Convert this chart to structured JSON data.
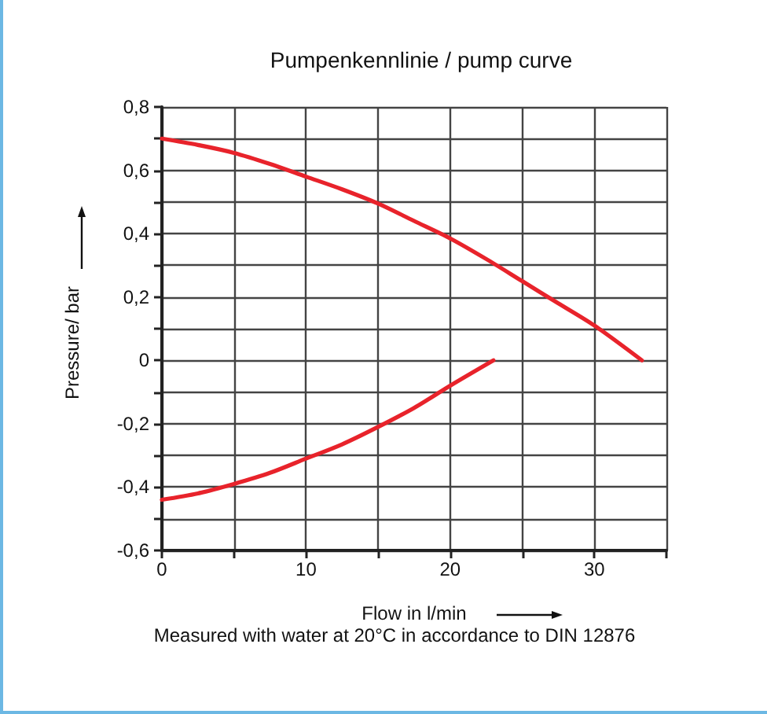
{
  "chart_data": {
    "type": "line",
    "title": "Pumpenkennlinie / pump curve",
    "xlabel": "Flow in l/min",
    "ylabel": "Pressure/ bar",
    "annotations": [
      "Measured with water at 20°C in accordance to DIN 12876"
    ],
    "series": [
      {
        "color": "#e8232b",
        "x": [
          0,
          2.5,
          5,
          7.5,
          10,
          12.5,
          15,
          17.5,
          20,
          22.5,
          25,
          27.5,
          30,
          33.3
        ],
        "values": [
          0.7,
          0.68,
          0.655,
          0.62,
          0.58,
          0.54,
          0.495,
          0.44,
          0.385,
          0.32,
          0.25,
          0.18,
          0.11,
          0
        ]
      },
      {
        "color": "#e8232b",
        "x": [
          0,
          2.5,
          5,
          7.5,
          10,
          12.5,
          15,
          17.5,
          20,
          23
        ],
        "values": [
          -0.44,
          -0.42,
          -0.39,
          -0.355,
          -0.31,
          -0.265,
          -0.21,
          -0.15,
          -0.08,
          0
        ]
      }
    ],
    "xlim": [
      0,
      35
    ],
    "xticks": [
      0,
      {
        "value": 5,
        "label": null
      },
      10,
      {
        "value": 15,
        "label": null
      },
      20,
      {
        "value": 25,
        "label": null
      },
      30,
      {
        "value": 35,
        "label": null
      }
    ],
    "ylim": [
      -0.6,
      0.8
    ],
    "yticks": [
      {
        "value": -0.6,
        "label": "-0,6"
      },
      {
        "value": -0.5,
        "label": null
      },
      {
        "value": -0.4,
        "label": "-0,4"
      },
      {
        "value": -0.3,
        "label": null
      },
      {
        "value": -0.2,
        "label": "-0,2"
      },
      {
        "value": -0.1,
        "label": null
      },
      0,
      {
        "value": 0.1,
        "label": null
      },
      {
        "value": 0.2,
        "label": "0,2"
      },
      {
        "value": 0.3,
        "label": null
      },
      {
        "value": 0.4,
        "label": "0,4"
      },
      {
        "value": 0.5,
        "label": null
      },
      {
        "value": 0.6,
        "label": "0,6"
      },
      {
        "value": 0.7,
        "label": null
      },
      {
        "value": 0.8,
        "label": "0,8"
      }
    ],
    "grid": true,
    "marker": "none",
    "line_style": "solid"
  }
}
